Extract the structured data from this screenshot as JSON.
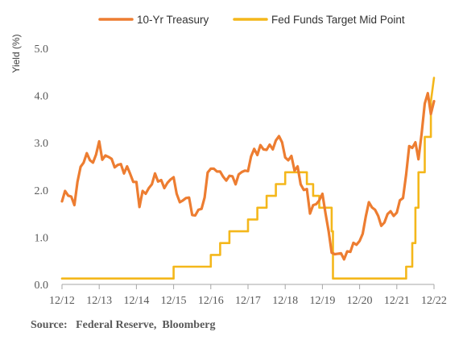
{
  "chart_data": {
    "type": "line",
    "title": "",
    "xlabel": "",
    "ylabel": "Yield (%)",
    "ylim": [
      0,
      5
    ],
    "yticks": [
      "0.0",
      "1.0",
      "2.0",
      "3.0",
      "4.0",
      "5.0"
    ],
    "xlim": [
      2012.917,
      2022.917
    ],
    "xticks": [
      "12/12",
      "12/13",
      "12/14",
      "12/15",
      "12/16",
      "12/17",
      "12/18",
      "12/19",
      "12/20",
      "12/21",
      "12/22"
    ],
    "grid": false,
    "legend_position": "top",
    "series": [
      {
        "name": "10-Yr Treasury",
        "color": "#ED7D31",
        "x": [
          2012.917,
          2013.0,
          2013.083,
          2013.167,
          2013.25,
          2013.333,
          2013.417,
          2013.5,
          2013.583,
          2013.667,
          2013.75,
          2013.833,
          2013.917,
          2014.0,
          2014.083,
          2014.167,
          2014.25,
          2014.333,
          2014.417,
          2014.5,
          2014.583,
          2014.667,
          2014.75,
          2014.833,
          2014.917,
          2015.0,
          2015.083,
          2015.167,
          2015.25,
          2015.333,
          2015.417,
          2015.5,
          2015.583,
          2015.667,
          2015.75,
          2015.833,
          2015.917,
          2016.0,
          2016.083,
          2016.167,
          2016.25,
          2016.333,
          2016.417,
          2016.5,
          2016.583,
          2016.667,
          2016.75,
          2016.833,
          2016.917,
          2017.0,
          2017.083,
          2017.167,
          2017.25,
          2017.333,
          2017.417,
          2017.5,
          2017.583,
          2017.667,
          2017.75,
          2017.833,
          2017.917,
          2018.0,
          2018.083,
          2018.167,
          2018.25,
          2018.333,
          2018.417,
          2018.5,
          2018.583,
          2018.667,
          2018.75,
          2018.833,
          2018.917,
          2019.0,
          2019.083,
          2019.167,
          2019.25,
          2019.333,
          2019.417,
          2019.5,
          2019.583,
          2019.667,
          2019.75,
          2019.833,
          2019.917,
          2020.0,
          2020.083,
          2020.167,
          2020.25,
          2020.333,
          2020.417,
          2020.5,
          2020.583,
          2020.667,
          2020.75,
          2020.833,
          2020.917,
          2021.0,
          2021.083,
          2021.167,
          2021.25,
          2021.333,
          2021.417,
          2021.5,
          2021.583,
          2021.667,
          2021.75,
          2021.833,
          2021.917,
          2022.0,
          2022.083,
          2022.167,
          2022.25,
          2022.333,
          2022.417,
          2022.5,
          2022.583,
          2022.667,
          2022.75,
          2022.833,
          2022.917
        ],
        "values": [
          1.76,
          1.98,
          1.88,
          1.86,
          1.68,
          2.17,
          2.49,
          2.58,
          2.78,
          2.63,
          2.58,
          2.75,
          3.03,
          2.64,
          2.73,
          2.7,
          2.66,
          2.48,
          2.53,
          2.55,
          2.35,
          2.5,
          2.34,
          2.17,
          2.17,
          1.64,
          1.98,
          1.92,
          2.04,
          2.12,
          2.35,
          2.18,
          2.21,
          2.04,
          2.15,
          2.22,
          2.27,
          1.92,
          1.74,
          1.78,
          1.83,
          1.84,
          1.47,
          1.46,
          1.58,
          1.6,
          1.84,
          2.37,
          2.45,
          2.45,
          2.39,
          2.39,
          2.28,
          2.2,
          2.3,
          2.29,
          2.12,
          2.33,
          2.38,
          2.41,
          2.4,
          2.71,
          2.87,
          2.74,
          2.95,
          2.86,
          2.85,
          2.96,
          2.86,
          3.05,
          3.14,
          3.01,
          2.69,
          2.63,
          2.72,
          2.41,
          2.5,
          2.12,
          2.0,
          2.02,
          1.5,
          1.68,
          1.7,
          1.78,
          1.92,
          1.51,
          1.13,
          0.67,
          0.64,
          0.65,
          0.66,
          0.53,
          0.7,
          0.69,
          0.88,
          0.84,
          0.92,
          1.07,
          1.44,
          1.74,
          1.63,
          1.58,
          1.45,
          1.24,
          1.31,
          1.49,
          1.55,
          1.45,
          1.52,
          1.78,
          1.83,
          2.33,
          2.93,
          2.89,
          3.01,
          2.65,
          3.19,
          3.83,
          4.05,
          3.61,
          3.88
        ]
      },
      {
        "name": "Fed Funds Target Mid Point",
        "color": "#F4B71B",
        "x": [
          2012.917,
          2015.917,
          2015.917,
          2016.917,
          2016.917,
          2017.167,
          2017.167,
          2017.417,
          2017.417,
          2017.917,
          2017.917,
          2018.167,
          2018.167,
          2018.417,
          2018.417,
          2018.667,
          2018.667,
          2018.917,
          2018.917,
          2019.5,
          2019.5,
          2019.667,
          2019.667,
          2019.833,
          2019.833,
          2020.167,
          2020.167,
          2020.2,
          2020.2,
          2022.167,
          2022.167,
          2022.333,
          2022.333,
          2022.417,
          2022.417,
          2022.5,
          2022.5,
          2022.667,
          2022.667,
          2022.833,
          2022.833,
          2022.917
        ],
        "values": [
          0.125,
          0.125,
          0.375,
          0.375,
          0.625,
          0.625,
          0.875,
          0.875,
          1.125,
          1.125,
          1.375,
          1.375,
          1.625,
          1.625,
          1.875,
          1.875,
          2.125,
          2.125,
          2.375,
          2.375,
          2.125,
          2.125,
          1.875,
          1.875,
          1.625,
          1.625,
          1.125,
          1.125,
          0.125,
          0.125,
          0.375,
          0.375,
          0.875,
          0.875,
          1.625,
          1.625,
          2.375,
          2.375,
          3.125,
          3.125,
          3.875,
          4.375
        ]
      }
    ]
  },
  "source": {
    "label": "Source:",
    "text": "Federal Reserve,  Bloomberg"
  }
}
